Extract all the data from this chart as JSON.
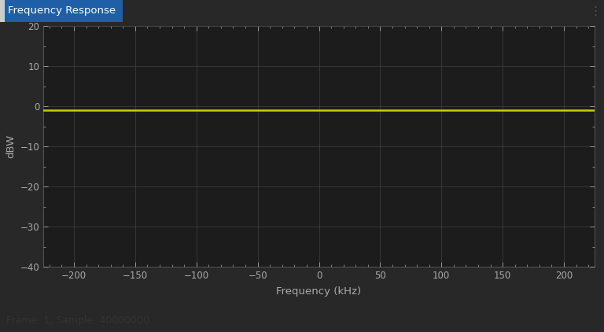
{
  "title": "Frequency Response",
  "xlabel": "Frequency (kHz)",
  "ylabel": "dBW",
  "xlim": [
    -225,
    225
  ],
  "ylim": [
    -40,
    20
  ],
  "xticks": [
    -200,
    -150,
    -100,
    -50,
    0,
    50,
    100,
    150,
    200
  ],
  "yticks": [
    -40,
    -30,
    -20,
    -10,
    0,
    10,
    20
  ],
  "line_y": -1.0,
  "line_color": "#cccc00",
  "line_width": 1.8,
  "plot_bg_color": "#1c1c1c",
  "outer_bg_color": "#282828",
  "header_bg_color": "#f5f5f5",
  "header_title_color": "#111111",
  "grid_color": "#404040",
  "tick_color": "#aaaaaa",
  "label_color": "#aaaaaa",
  "footer_text": "Frame: 1, Sample: 40000000",
  "footer_bg_color": "#e0e0e0",
  "footer_text_color": "#333333",
  "title_tab_color": "#1e5fa8",
  "figsize": [
    7.68,
    4.22
  ],
  "dpi": 100
}
